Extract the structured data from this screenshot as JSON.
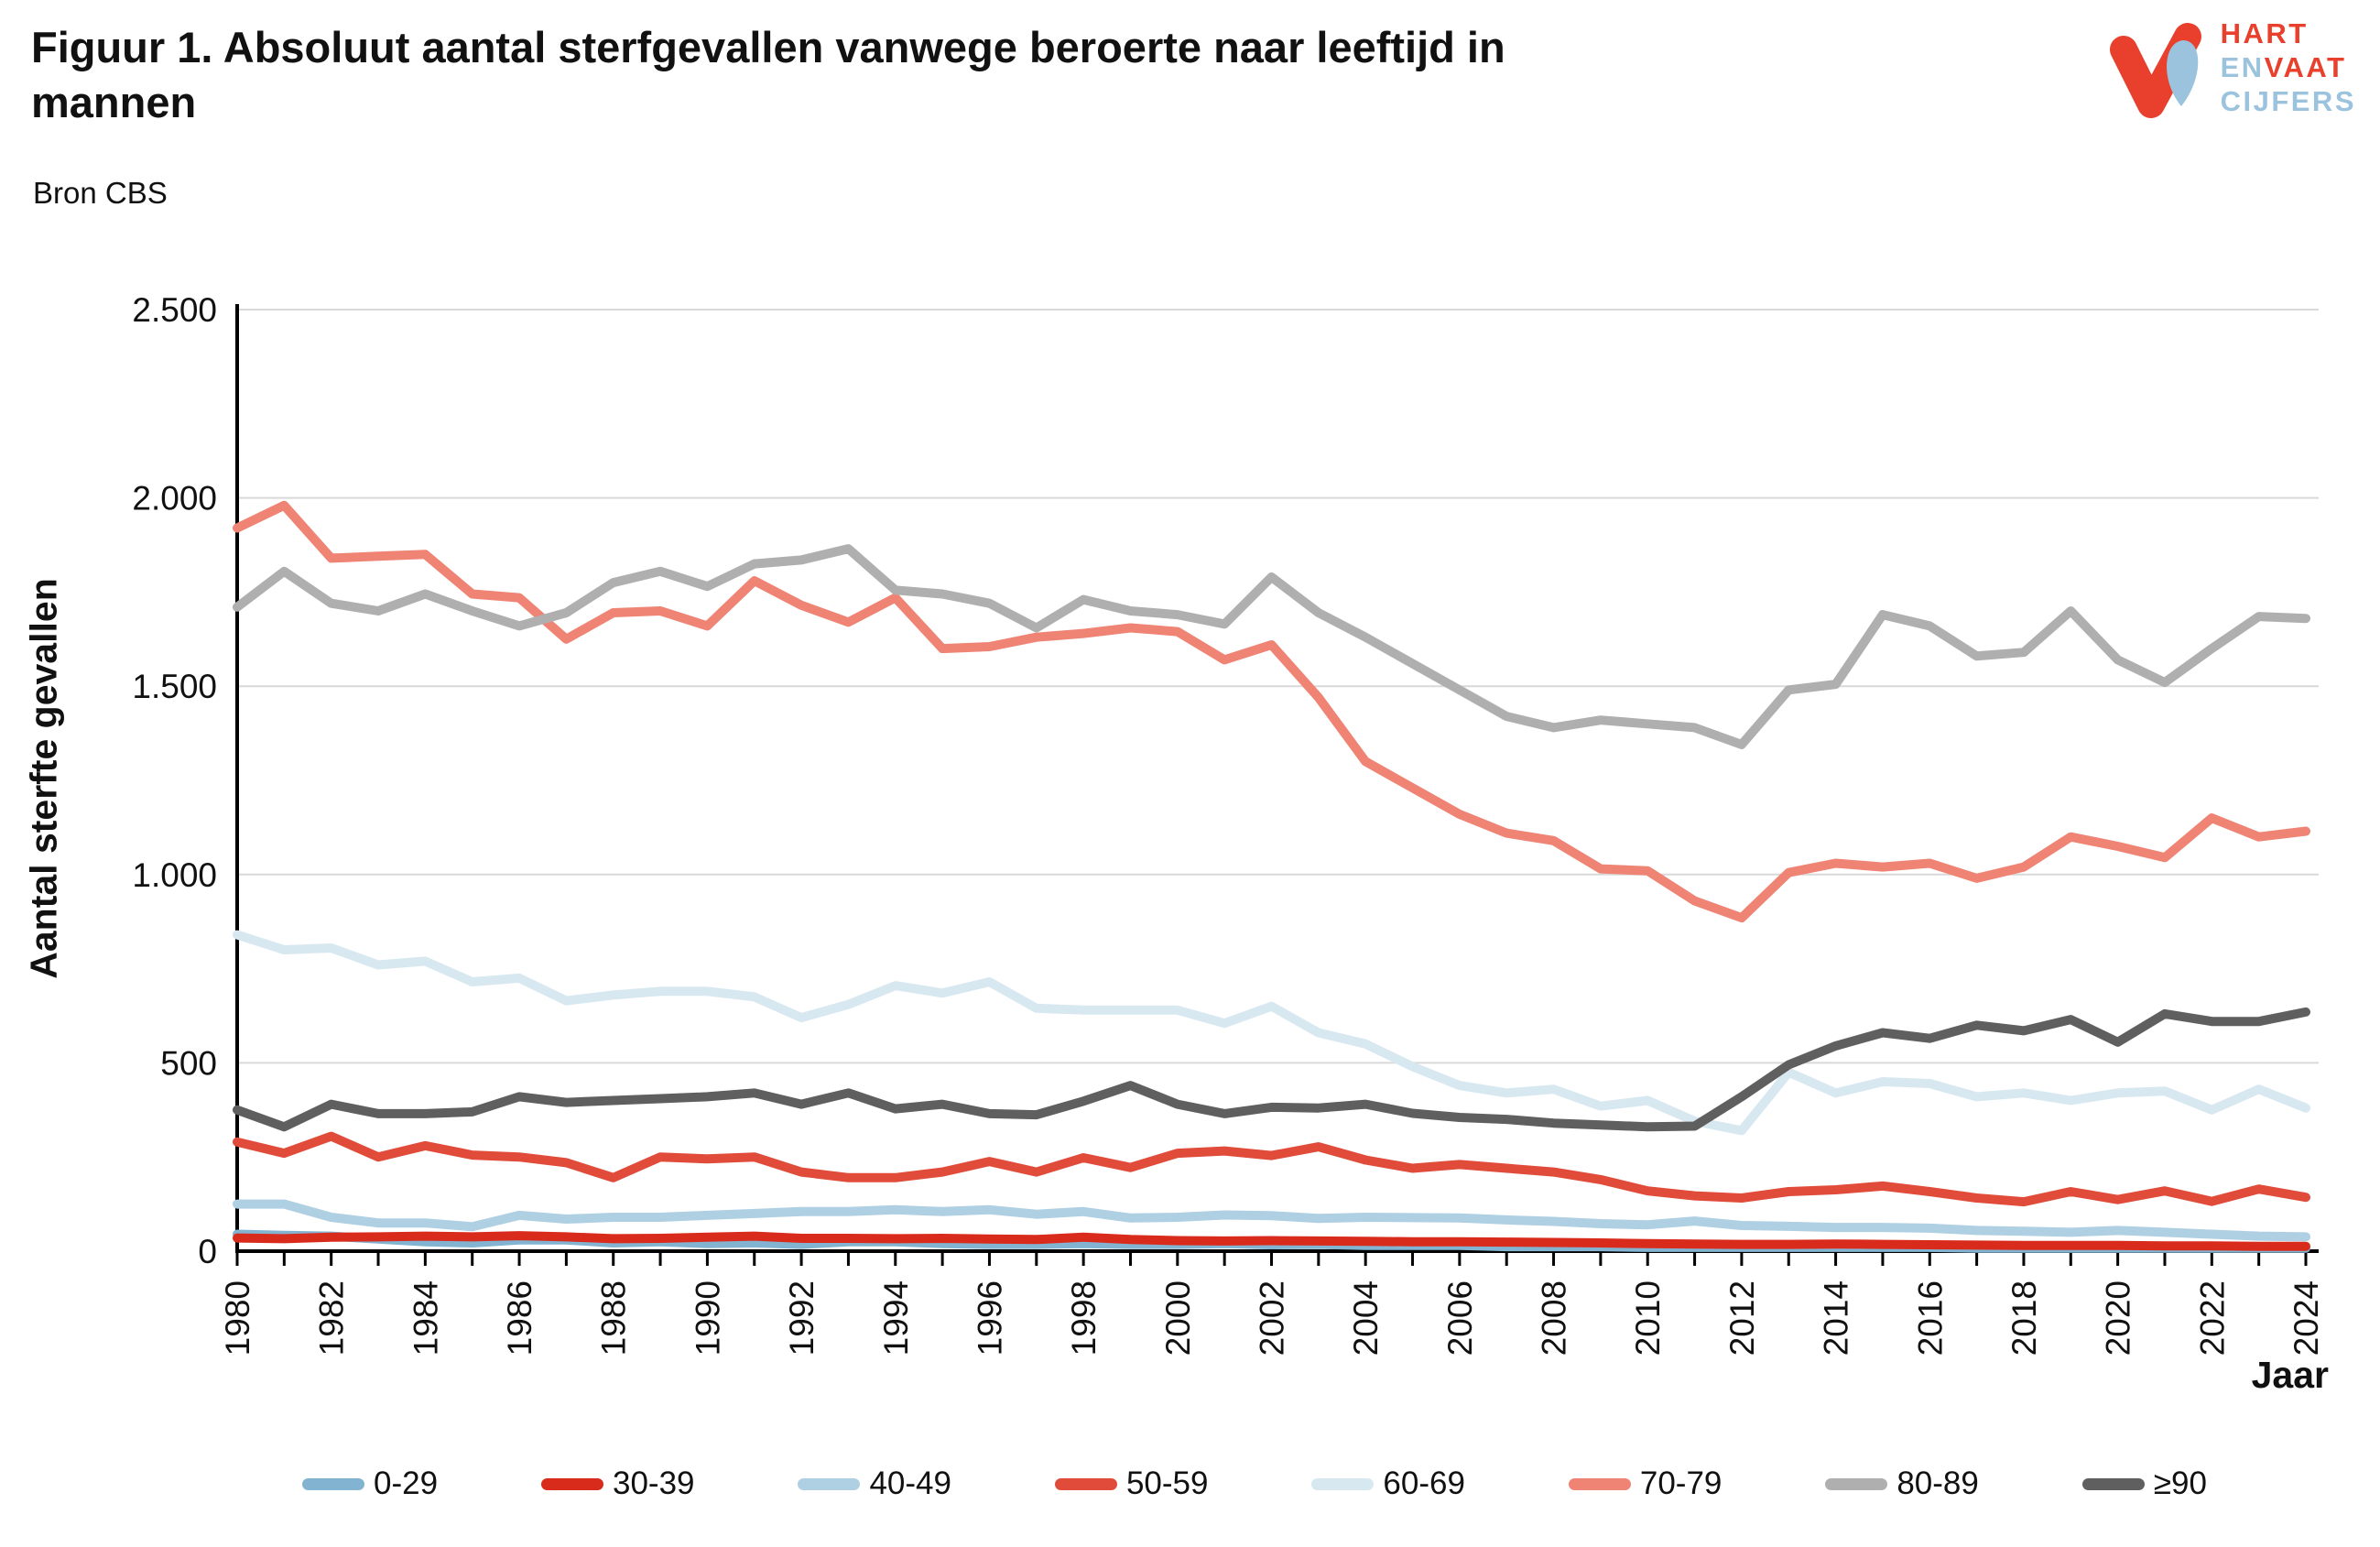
{
  "header": {
    "title": "Figuur 1. Absoluut aantal sterfgevallen vanwege beroerte naar leeftijd in mannen",
    "source": "Bron CBS"
  },
  "logo": {
    "line1": "HART",
    "line2a": "EN",
    "line2b": "VAAT",
    "line3": "CIJFERS",
    "red": "#E8402C",
    "blue": "#9CC3DD"
  },
  "chart_data": {
    "type": "line",
    "title": "Figuur 1. Absoluut aantal sterfgevallen vanwege beroerte naar leeftijd in mannen",
    "xlabel": "Jaar",
    "ylabel": "Aantal sterfte gevallen",
    "ylim": [
      0,
      2500
    ],
    "grid": "horizontal",
    "legend_position": "bottom",
    "y_ticks": [
      0,
      500,
      1000,
      1500,
      2000,
      2500
    ],
    "y_tick_labels": [
      "0",
      "500",
      "1.000",
      "1.500",
      "2.000",
      "2.500"
    ],
    "x_label_every": 2,
    "x": [
      1980,
      1981,
      1982,
      1983,
      1984,
      1985,
      1986,
      1987,
      1988,
      1989,
      1990,
      1991,
      1992,
      1993,
      1994,
      1995,
      1996,
      1997,
      1998,
      1999,
      2000,
      2001,
      2002,
      2003,
      2004,
      2005,
      2006,
      2007,
      2008,
      2009,
      2010,
      2011,
      2012,
      2013,
      2014,
      2015,
      2016,
      2017,
      2018,
      2019,
      2020,
      2021,
      2022,
      2023,
      2024
    ],
    "series": [
      {
        "name": "0-29",
        "color": "#82B4D1",
        "values": [
          45,
          42,
          40,
          32,
          25,
          22,
          30,
          30,
          22,
          25,
          20,
          22,
          18,
          25,
          25,
          20,
          18,
          18,
          20,
          18,
          18,
          20,
          17,
          18,
          15,
          15,
          15,
          12,
          12,
          12,
          10,
          10,
          10,
          10,
          10,
          10,
          10,
          8,
          8,
          8,
          8,
          8,
          8,
          8,
          8
        ]
      },
      {
        "name": "30-39",
        "color": "#D92B1C",
        "values": [
          35,
          33,
          37,
          38,
          40,
          38,
          41,
          38,
          33,
          34,
          37,
          40,
          34,
          34,
          33,
          34,
          32,
          31,
          37,
          31,
          28,
          27,
          28,
          27,
          26,
          25,
          25,
          24,
          23,
          22,
          20,
          19,
          18,
          18,
          19,
          18,
          17,
          16,
          15,
          15,
          15,
          14,
          14,
          13,
          13
        ]
      },
      {
        "name": "40-49",
        "color": "#AFCFE3",
        "values": [
          125,
          125,
          90,
          75,
          75,
          65,
          95,
          85,
          90,
          90,
          95,
          100,
          105,
          105,
          110,
          105,
          110,
          98,
          105,
          88,
          90,
          96,
          94,
          87,
          90,
          89,
          88,
          83,
          79,
          73,
          70,
          80,
          68,
          66,
          63,
          63,
          61,
          55,
          53,
          50,
          55,
          50,
          45,
          40,
          38
        ]
      },
      {
        "name": "50-59",
        "color": "#E04B3A",
        "values": [
          290,
          260,
          305,
          250,
          280,
          255,
          250,
          235,
          195,
          250,
          245,
          250,
          210,
          195,
          195,
          210,
          238,
          210,
          248,
          222,
          260,
          266,
          254,
          277,
          242,
          220,
          230,
          220,
          210,
          190,
          160,
          147,
          141,
          158,
          163,
          173,
          158,
          141,
          131,
          158,
          137,
          160,
          132,
          165,
          143
        ]
      },
      {
        "name": "60-69",
        "color": "#D8E8F1",
        "values": [
          840,
          800,
          805,
          760,
          770,
          715,
          725,
          665,
          680,
          690,
          690,
          675,
          620,
          655,
          705,
          685,
          715,
          645,
          640,
          640,
          640,
          605,
          650,
          580,
          550,
          490,
          440,
          420,
          430,
          385,
          400,
          345,
          320,
          475,
          420,
          450,
          445,
          410,
          420,
          400,
          420,
          425,
          375,
          430,
          380
        ]
      },
      {
        "name": "70-79",
        "color": "#EF8374",
        "values": [
          1920,
          1980,
          1840,
          1845,
          1850,
          1745,
          1735,
          1625,
          1695,
          1700,
          1660,
          1780,
          1715,
          1670,
          1735,
          1600,
          1605,
          1630,
          1640,
          1655,
          1645,
          1570,
          1610,
          1470,
          1300,
          1230,
          1160,
          1110,
          1090,
          1015,
          1010,
          930,
          885,
          1005,
          1030,
          1020,
          1030,
          990,
          1020,
          1100,
          1075,
          1045,
          1150,
          1100,
          1115
        ]
      },
      {
        "name": "80-89",
        "color": "#AFAFAF",
        "values": [
          1710,
          1805,
          1720,
          1700,
          1745,
          1700,
          1660,
          1695,
          1775,
          1805,
          1765,
          1825,
          1835,
          1865,
          1755,
          1745,
          1720,
          1655,
          1730,
          1700,
          1690,
          1665,
          1790,
          1695,
          1630,
          1560,
          1490,
          1420,
          1390,
          1410,
          1400,
          1390,
          1345,
          1490,
          1505,
          1690,
          1660,
          1580,
          1590,
          1700,
          1570,
          1510,
          1600,
          1685,
          1680
        ]
      },
      {
        "name": "≥90",
        "color": "#5F5F5F",
        "values": [
          375,
          330,
          390,
          365,
          365,
          370,
          410,
          395,
          400,
          405,
          410,
          420,
          390,
          420,
          378,
          390,
          365,
          362,
          398,
          440,
          390,
          365,
          382,
          380,
          390,
          366,
          355,
          350,
          340,
          335,
          330,
          332,
          410,
          495,
          545,
          580,
          565,
          600,
          585,
          615,
          555,
          630,
          610,
          610,
          635
        ]
      }
    ]
  }
}
